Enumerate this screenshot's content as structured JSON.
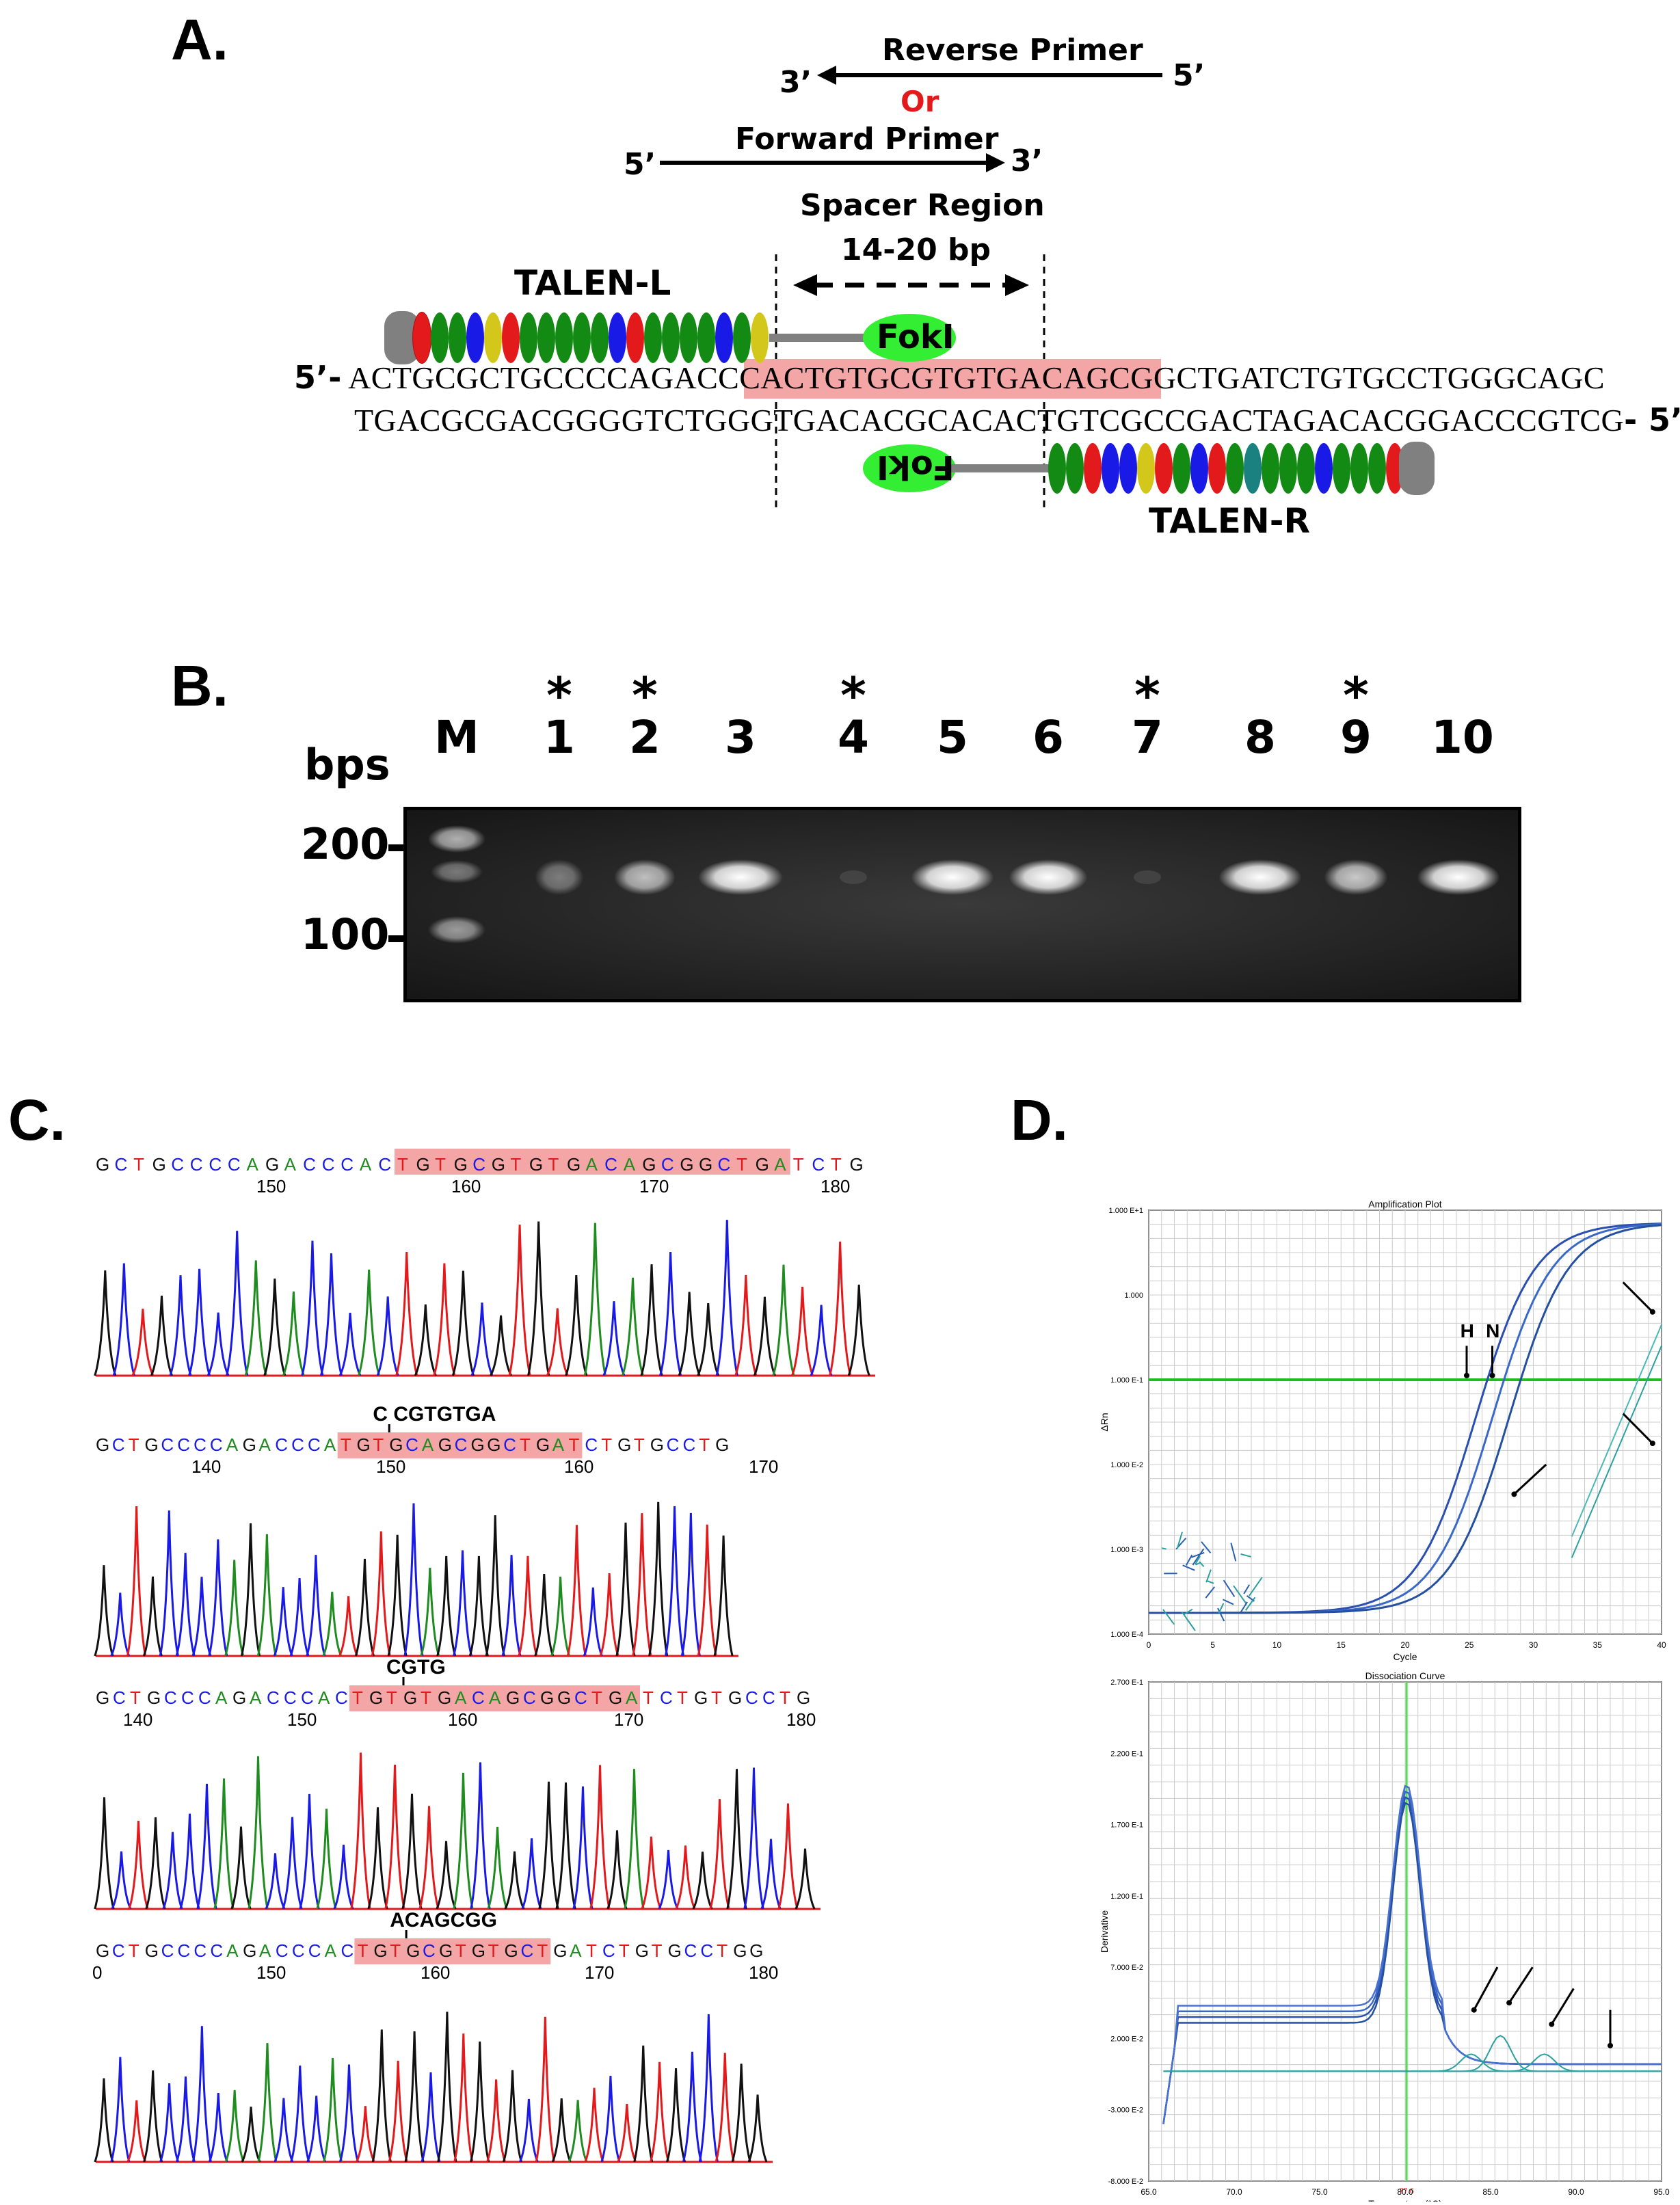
{
  "panels": {
    "a": "A.",
    "b": "B.",
    "c": "C.",
    "d": "D."
  },
  "panel_a": {
    "three_prime": "3’",
    "five_prime": "5’",
    "reverse_primer": "Reverse Primer",
    "or": "Or",
    "forward_primer": "Forward Primer",
    "spacer_title": "Spacer Region",
    "spacer_size": "14-20 bp",
    "talen_l": "TALEN-L",
    "talen_r": "TALEN-R",
    "foki": "FokI",
    "top_prefix": "5’-",
    "top_seq_pre": "ACTGCGCTGCCCCAGACCCAC",
    "top_seq_hl": "TGTGCGTGTGACAGCGGCTGA",
    "top_seq_post": "TCTGTGCCTGGGCAGC",
    "bot_seq": "TGACGCGACGGGGTCTGGGTGACACGCACACTGTCGCCGACTAGACACGGACCCGTCG",
    "bot_suffix": "- 5’",
    "colors": {
      "highlight": "#f4a6a6",
      "foki": "#33ee33",
      "or": "#e31a1c"
    }
  },
  "panel_b": {
    "bps": "bps",
    "lanes": [
      "M",
      "1",
      "2",
      "3",
      "4",
      "5",
      "6",
      "7",
      "8",
      "9",
      "10"
    ],
    "starred": [
      "1",
      "2",
      "4",
      "7",
      "9"
    ],
    "star": "*",
    "ladder": [
      "200",
      "100"
    ],
    "band_intensity": [
      0,
      0.15,
      0.45,
      1.0,
      0.02,
      0.95,
      0.85,
      0.03,
      0.95,
      0.5,
      0.95
    ]
  },
  "panel_c": {
    "tracks": [
      {
        "seq": "GCTGCCCCAGACCCACTGTGCGTGTGACAGCGGCTGATCTG",
        "ticks": [
          "150",
          "160",
          "170",
          "180"
        ],
        "insert": ""
      },
      {
        "seq": "GCTGCCCCAGACCCATGTGCAGCGGCTGATCTGTGCCTG",
        "ticks": [
          "140",
          "150",
          "160",
          "170"
        ],
        "insert": "C CGTGTGA"
      },
      {
        "seq": "GCTGCCCAGACCCACTGTGTGACAGCGGCTGATCTGTGCCTG",
        "ticks": [
          "140",
          "150",
          "160",
          "170",
          "180"
        ],
        "insert": "CGTG"
      },
      {
        "seq": "GCTGCCCCAGACCCACTGTGCGTGTGCTGATCTGTGCCTGG",
        "ticks": [
          "0",
          "150",
          "160",
          "170",
          "180"
        ],
        "insert": "ACAGCGG"
      }
    ]
  },
  "panel_d": {
    "amp_title": "Amplification Plot",
    "amp_ylabel": "ΔRn",
    "amp_xlabel": "Cycle",
    "amp_yticks": [
      "1.000 E+1",
      "1.000",
      "1.000 E-1",
      "1.000 E-2",
      "1.000 E-3",
      "1.000 E-4"
    ],
    "amp_xticks": [
      "0",
      "5",
      "10",
      "15",
      "20",
      "25",
      "30",
      "35",
      "40"
    ],
    "h_label": "H",
    "n_label": "N",
    "diss_title": "Dissociation Curve",
    "diss_ylabel": "Derivative",
    "diss_xlabel": "Temperature (°C)",
    "diss_yticks": [
      "2.700 E-1",
      "2.200 E-1",
      "1.700 E-1",
      "1.200 E-1",
      "7.000 E-2",
      "2.000 E-2",
      "-3.000 E-2",
      "-8.000 E-2"
    ],
    "diss_xticks": [
      "65.0",
      "70.0",
      "75.0",
      "80.0",
      "85.0",
      "90.0",
      "95.0"
    ],
    "tm_marker": "77.6"
  }
}
